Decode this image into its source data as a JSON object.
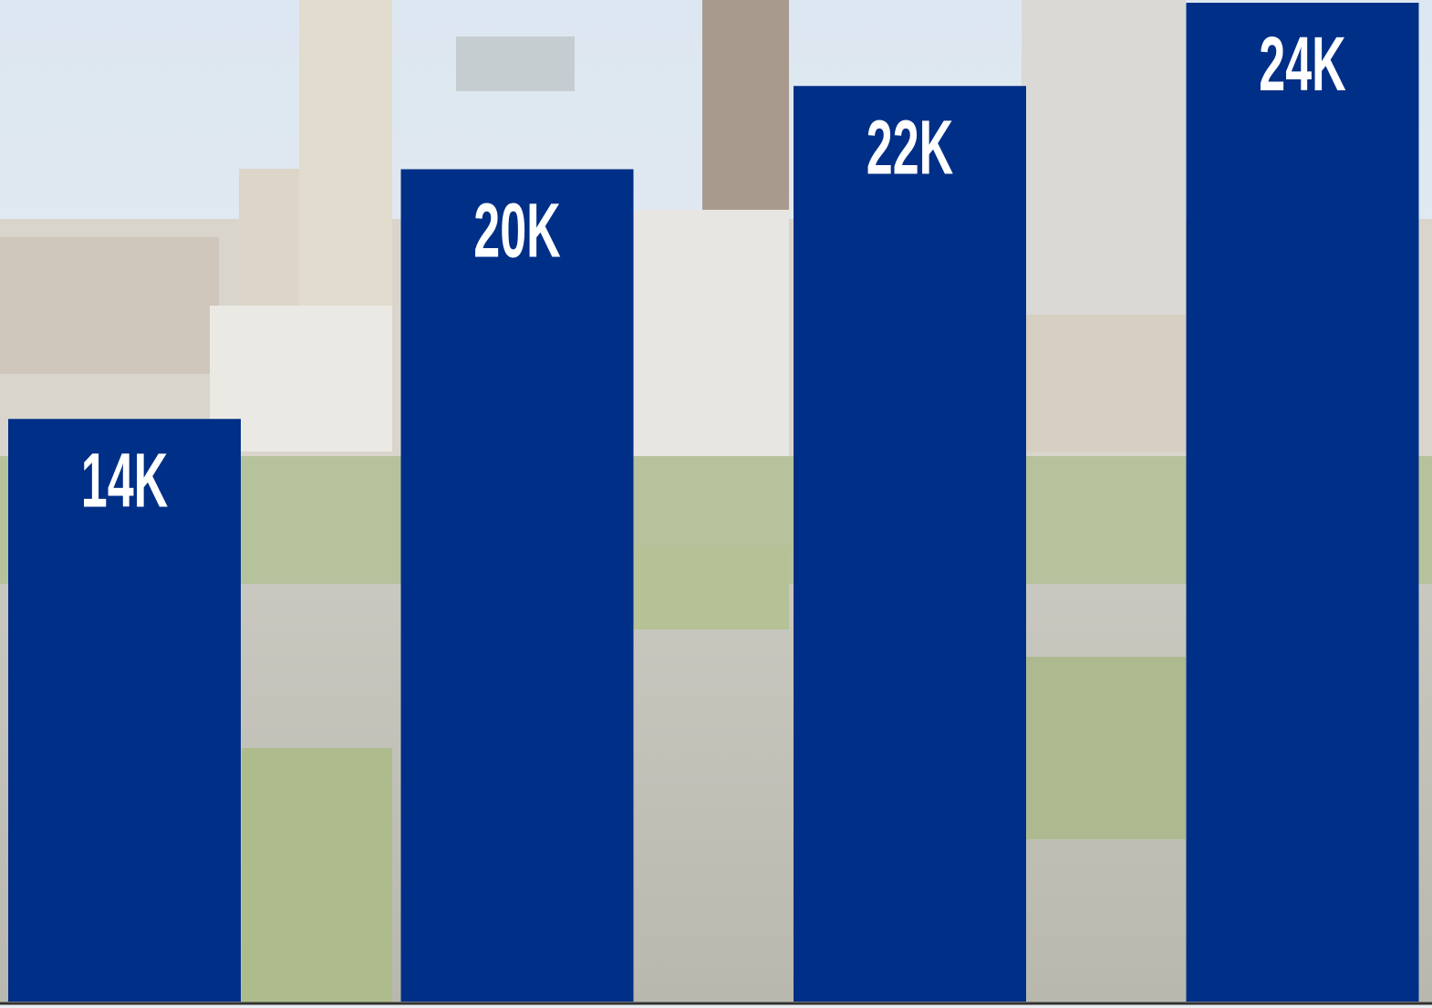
{
  "chart_data": {
    "type": "bar",
    "values": [
      14000,
      20000,
      22000,
      24000
    ],
    "value_labels": [
      "14K",
      "20K",
      "22K",
      "24K"
    ],
    "color": "#002f87"
  }
}
